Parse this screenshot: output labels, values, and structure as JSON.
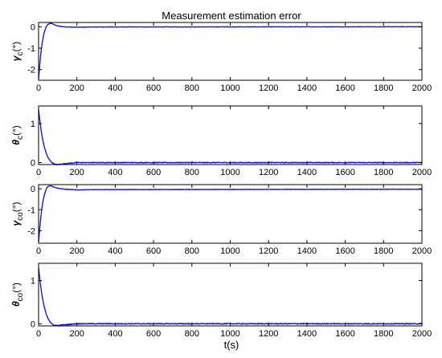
{
  "title": "Measurement estimation error",
  "xlabel": "t(s)",
  "colors": {
    "line": "#1a1ad0",
    "axes": "#000000",
    "background": "#ffffff"
  },
  "chart_data": [
    {
      "type": "line",
      "title": "Measurement estimation error",
      "ylabel_main": "γ",
      "ylabel_sub": "c",
      "ylabel_unit": "(°)",
      "xlim": [
        0,
        2000
      ],
      "ylim": [
        -2.5,
        0.2
      ],
      "xticks": [
        0,
        200,
        400,
        600,
        800,
        1000,
        1200,
        1400,
        1600,
        1800,
        2000
      ],
      "yticks": [
        0,
        -1,
        -2
      ],
      "grid": false,
      "series": [
        {
          "x": [
            0,
            5,
            10,
            15,
            20,
            25,
            30,
            40,
            50,
            60,
            70,
            80,
            100,
            120,
            150,
            200,
            300,
            2000
          ],
          "y": [
            -2.45,
            -1.9,
            -1.4,
            -1.0,
            -0.7,
            -0.45,
            -0.25,
            0.0,
            0.12,
            0.16,
            0.15,
            0.1,
            0.04,
            0.01,
            -0.01,
            -0.02,
            -0.01,
            0.0
          ],
          "noise": 0.02
        }
      ]
    },
    {
      "type": "line",
      "ylabel_main": "θ",
      "ylabel_sub": "c",
      "ylabel_unit": "(°)",
      "xlim": [
        0,
        2000
      ],
      "ylim": [
        -0.05,
        1.45
      ],
      "xticks": [
        0,
        200,
        400,
        600,
        800,
        1000,
        1200,
        1400,
        1600,
        1800,
        2000
      ],
      "yticks": [
        0,
        1
      ],
      "grid": false,
      "series": [
        {
          "x": [
            0,
            5,
            10,
            15,
            20,
            30,
            40,
            50,
            60,
            70,
            80,
            90,
            100,
            120,
            150,
            200,
            300,
            2000
          ],
          "y": [
            1.35,
            1.15,
            0.95,
            0.78,
            0.62,
            0.4,
            0.24,
            0.12,
            0.05,
            0.0,
            -0.03,
            -0.05,
            -0.05,
            -0.04,
            -0.02,
            0.0,
            0.0,
            0.0
          ],
          "noise": 0.02
        }
      ]
    },
    {
      "type": "line",
      "ylabel_main": "γ",
      "ylabel_sub": "co",
      "ylabel_unit": "(°)",
      "xlim": [
        0,
        2000
      ],
      "ylim": [
        -2.6,
        0.2
      ],
      "xticks": [
        0,
        200,
        400,
        600,
        800,
        1000,
        1200,
        1400,
        1600,
        1800,
        2000
      ],
      "yticks": [
        0,
        -1,
        -2
      ],
      "grid": false,
      "series": [
        {
          "x": [
            0,
            5,
            10,
            15,
            20,
            25,
            30,
            40,
            50,
            60,
            70,
            80,
            100,
            120,
            150,
            200,
            300,
            2000
          ],
          "y": [
            -2.55,
            -2.0,
            -1.5,
            -1.1,
            -0.75,
            -0.5,
            -0.3,
            0.0,
            0.12,
            0.15,
            0.13,
            0.08,
            0.03,
            0.0,
            -0.03,
            -0.05,
            -0.04,
            -0.02
          ],
          "noise": 0.02
        }
      ]
    },
    {
      "type": "line",
      "ylabel_main": "θ",
      "ylabel_sub": "co",
      "ylabel_unit": "(°)",
      "xlim": [
        0,
        2000
      ],
      "ylim": [
        -0.05,
        1.4
      ],
      "xticks": [
        0,
        200,
        400,
        600,
        800,
        1000,
        1200,
        1400,
        1600,
        1800,
        2000
      ],
      "yticks": [
        0,
        1
      ],
      "grid": false,
      "series": [
        {
          "x": [
            0,
            5,
            10,
            15,
            20,
            30,
            40,
            50,
            60,
            70,
            80,
            90,
            100,
            120,
            150,
            200,
            300,
            2000
          ],
          "y": [
            1.3,
            1.1,
            0.9,
            0.74,
            0.6,
            0.38,
            0.22,
            0.11,
            0.04,
            0.0,
            -0.03,
            -0.04,
            -0.04,
            -0.03,
            -0.02,
            0.0,
            0.0,
            0.0
          ],
          "noise": 0.02
        }
      ]
    }
  ]
}
